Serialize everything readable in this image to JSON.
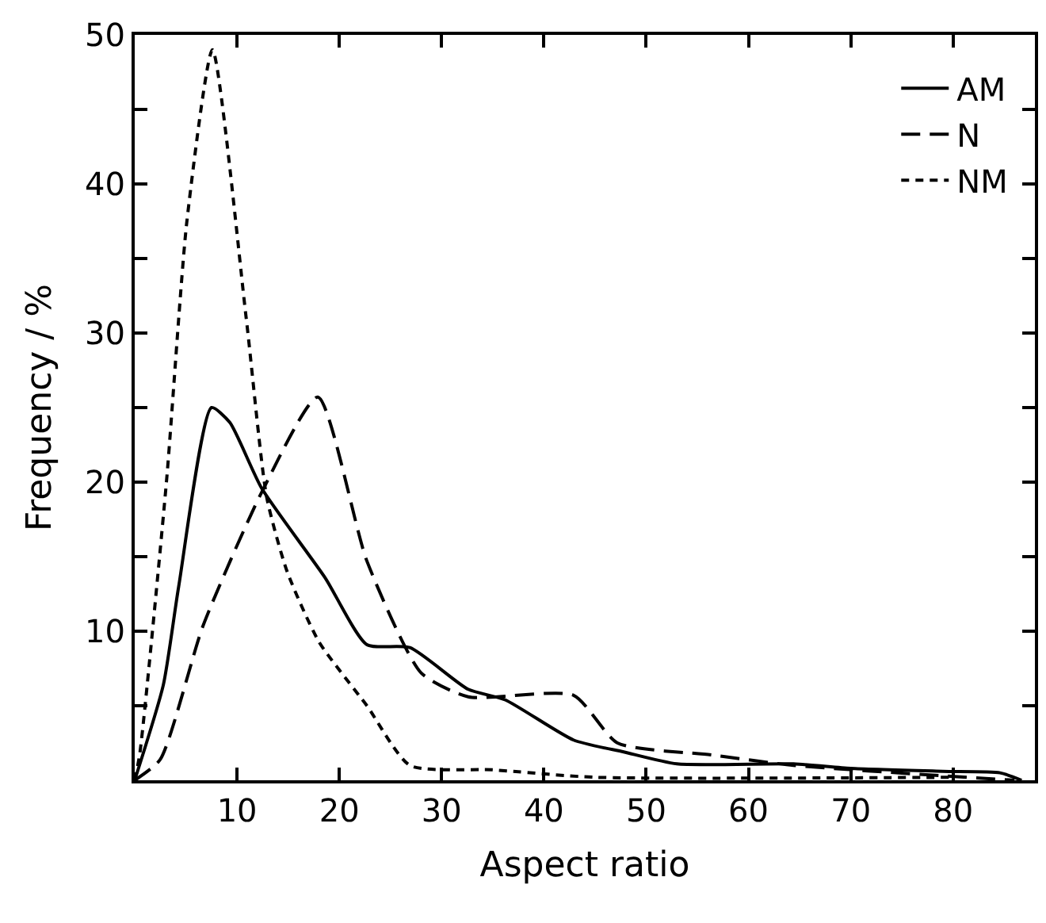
{
  "chart_data": {
    "type": "line",
    "xlabel": "Aspect ratio",
    "ylabel": "Frequency / %",
    "xlim": [
      0,
      88
    ],
    "xticks": [
      10,
      20,
      30,
      40,
      50,
      60,
      70,
      80
    ],
    "ylim": [
      0,
      50
    ],
    "yticks": [
      {
        "value": 5,
        "label": null
      },
      10,
      {
        "value": 15,
        "label": null
      },
      20,
      {
        "value": 25,
        "label": null
      },
      30,
      {
        "value": 35,
        "label": null
      },
      40,
      {
        "value": 45,
        "label": null
      },
      50
    ],
    "legend": "top right",
    "marker": "none",
    "series": [
      {
        "name": "AM",
        "color": "#000000",
        "line_style": "solid",
        "x": [
          0,
          2.8,
          4.3,
          7.5,
          9.3,
          12.4,
          18.6,
          22.7,
          26.9,
          32.6,
          36.2,
          42.9,
          47.8,
          53,
          64.4,
          70,
          79,
          84.6,
          86.7
        ],
        "values": [
          0,
          6.4,
          13,
          25,
          24,
          19.6,
          13.6,
          9.1,
          8.9,
          6.1,
          5.4,
          2.7,
          1.9,
          1.1,
          1.1,
          0.8,
          0.6,
          0.5,
          0
        ]
      },
      {
        "name": "N",
        "color": "#000000",
        "line_style": "dashed",
        "x": [
          0,
          2.5,
          6.7,
          12.4,
          17.9,
          22.7,
          28,
          32.6,
          42.9,
          47.2,
          56.4,
          64.4,
          79,
          86
        ],
        "values": [
          0,
          1.4,
          10.4,
          19.3,
          25.7,
          14.7,
          7.2,
          5.6,
          5.7,
          2.5,
          1.7,
          1,
          0.3,
          0
        ]
      },
      {
        "name": "NM",
        "color": "#000000",
        "line_style": "dotted",
        "x": [
          0,
          0.5,
          3.1,
          5.1,
          7.6,
          10.9,
          12.9,
          14.9,
          18,
          22.7,
          26.9,
          35,
          45,
          80
        ],
        "values": [
          0,
          1.8,
          20,
          37.5,
          49,
          31,
          19,
          14,
          9.3,
          5,
          1,
          0.7,
          0.2,
          0.2
        ]
      }
    ]
  }
}
